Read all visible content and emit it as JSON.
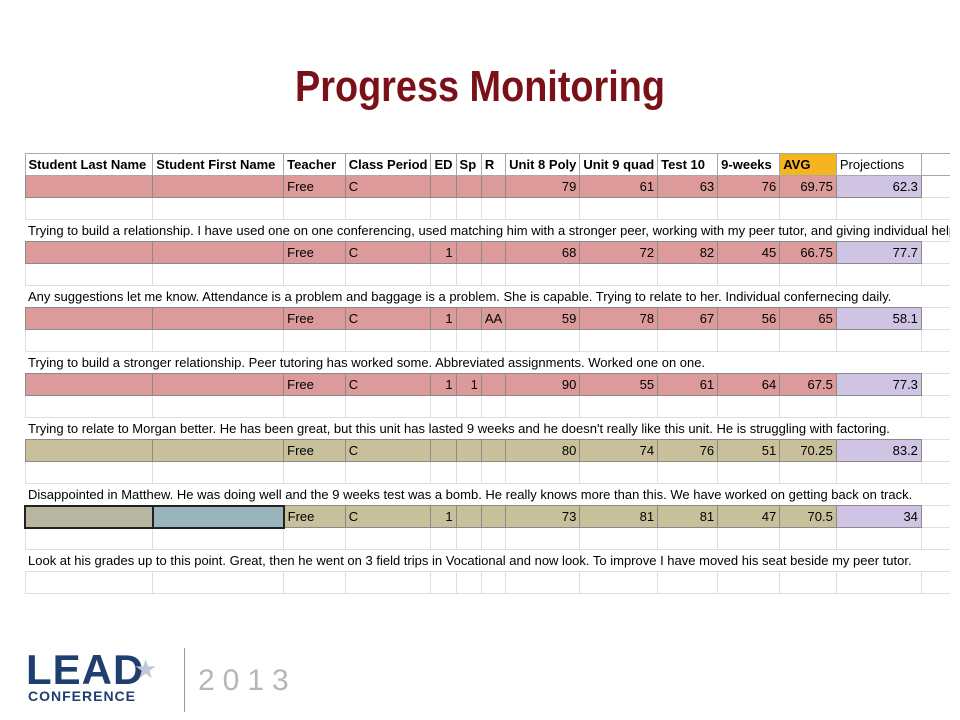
{
  "slide": {
    "title": "Progress Monitoring"
  },
  "sheet": {
    "headers": [
      "Student Last Name",
      "Student First Name",
      "Teacher",
      "Class Period",
      "ED",
      "Sp",
      "R",
      "Unit 8 Poly",
      "Unit 9 quad",
      "Test 10",
      "9-weeks",
      "AVG",
      "Projections"
    ],
    "rows": [
      {
        "teacher": "Free",
        "period": "C",
        "ed": "",
        "sp": "",
        "r": "",
        "u8": "79",
        "u9": "61",
        "t10": "63",
        "nw": "76",
        "avg": "69.75",
        "proj": "62.3",
        "note": "Trying to build a relationship.  I have used one on one conferencing, used matching him with a stronger peer, working with my peer tutor, and giving individual help."
      },
      {
        "teacher": "Free",
        "period": "C",
        "ed": "1",
        "sp": "",
        "r": "",
        "u8": "68",
        "u9": "72",
        "t10": "82",
        "nw": "45",
        "avg": "66.75",
        "proj": "77.7",
        "note": "Any suggestions let me know.  Attendance is a problem and baggage is a problem.  She is capable.  Trying to relate to her.  Individual confernecing daily."
      },
      {
        "teacher": "Free",
        "period": "C",
        "ed": "1",
        "sp": "",
        "r": "AA",
        "u8": "59",
        "u9": "78",
        "t10": "67",
        "nw": "56",
        "avg": "65",
        "proj": "58.1",
        "note": "Trying to build a stronger relationship. Peer tutoring has worked some. Abbreviated assignments. Worked one on one."
      },
      {
        "teacher": "Free",
        "period": "C",
        "ed": "1",
        "sp": "1",
        "r": "",
        "u8": "90",
        "u9": "55",
        "t10": "61",
        "nw": "64",
        "avg": "67.5",
        "proj": "77.3",
        "note": "Trying to relate to Morgan better.  He has been great, but this unit has lasted 9 weeks and he doesn't really like this unit.  He is struggling with factoring."
      },
      {
        "teacher": "Free",
        "period": "C",
        "ed": "",
        "sp": "",
        "r": "",
        "u8": "80",
        "u9": "74",
        "t10": "76",
        "nw": "51",
        "avg": "70.25",
        "proj": "83.2",
        "note": "Disappointed in Matthew.  He was doing well and the 9 weeks test was a bomb.  He really knows more than this.  We have worked on getting back on track."
      },
      {
        "teacher": "Free",
        "period": "C",
        "ed": "1",
        "sp": "",
        "r": "",
        "u8": "73",
        "u9": "81",
        "t10": "81",
        "nw": "47",
        "avg": "70.5",
        "proj": "34",
        "note": "Look at his grades up to this point. Great, then he went on 3 field trips in Vocational and now look.  To improve I have moved his seat beside my peer tutor."
      }
    ]
  },
  "logo": {
    "brand": "LEAD",
    "subtitle": "CONFERENCE",
    "year": "2013"
  },
  "colors": {
    "title": "#7a1119",
    "pink_row": "#dc9a9a",
    "olive_row": "#c8c09a",
    "projection": "#cfc4e4",
    "avg_header": "#f6b520",
    "brand": "#1f3f6e"
  }
}
